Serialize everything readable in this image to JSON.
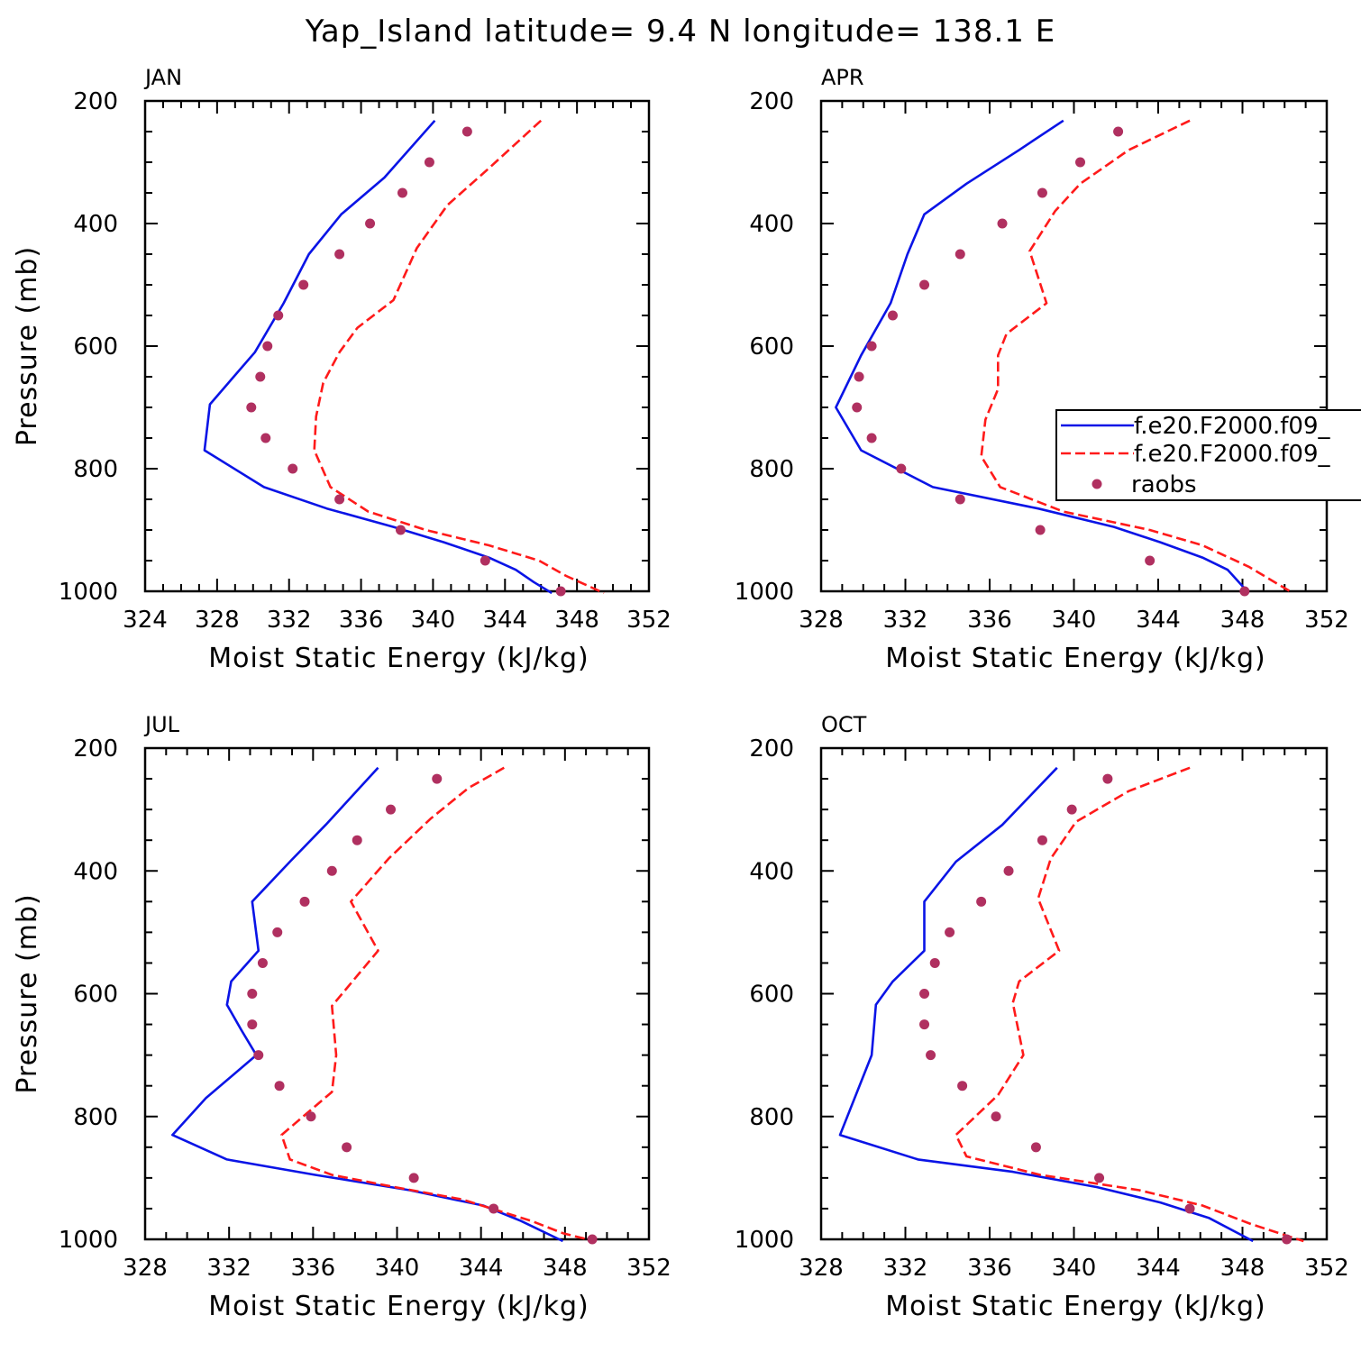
{
  "figure": {
    "title": "Yap_Island  latitude= 9.4 N longitude= 138.1 E",
    "legend": [
      "f.e20.F2000.f09_",
      "f.e20.F2000.f09_",
      "raobs"
    ]
  },
  "colors": {
    "model1": "#0a14e6",
    "model2": "#ff1a1a",
    "obs": "#b03060",
    "axis": "#000000"
  },
  "chart_data": [
    {
      "type": "line",
      "panel": "JAN",
      "xlabel": "Moist Static Energy (kJ/kg)",
      "ylabel": "Pressure (mb)",
      "xlim": [
        324,
        352
      ],
      "ylim": [
        200,
        1000
      ],
      "xticks": [
        324,
        328,
        332,
        336,
        340,
        344,
        348,
        352
      ],
      "yticks": [
        200,
        400,
        600,
        800,
        1000
      ],
      "series": [
        {
          "name": "f.e20.F2000.f09_",
          "style": "solid",
          "color": "#0a14e6",
          "x": [
            340.1,
            337.3,
            334.9,
            333.1,
            331.7,
            330.1,
            327.6,
            327.3,
            330.6,
            334.1,
            337.8,
            340.6,
            343.1,
            344.6,
            345.6,
            346.6
          ],
          "p": [
            232,
            325,
            385,
            450,
            530,
            610,
            695,
            770,
            830,
            865,
            895,
            920,
            945,
            965,
            985,
            1003
          ]
        },
        {
          "name": "f.e20.F2000.f09_",
          "style": "dashed",
          "color": "#ff1a1a",
          "x": [
            346,
            343.1,
            340.8,
            339.1,
            337.8,
            335.8,
            334.8,
            333.9,
            333.5,
            333.4,
            334.3,
            336.4,
            339.6,
            343.1,
            345.9,
            347.4,
            349.5
          ],
          "p": [
            232,
            310,
            370,
            440,
            525,
            570,
            610,
            660,
            715,
            770,
            830,
            870,
            900,
            925,
            950,
            975,
            1003
          ]
        },
        {
          "name": "raobs",
          "style": "markers",
          "color": "#b03060",
          "x": [
            341.9,
            339.8,
            338.3,
            336.5,
            334.8,
            332.8,
            331.4,
            330.8,
            330.4,
            329.9,
            330.7,
            332.2,
            334.8,
            338.2,
            342.9,
            347.1
          ],
          "p": [
            250,
            300,
            350,
            400,
            450,
            500,
            550,
            600,
            650,
            700,
            750,
            800,
            850,
            900,
            950,
            1000
          ]
        }
      ]
    },
    {
      "type": "line",
      "panel": "APR",
      "xlabel": "Moist Static Energy (kJ/kg)",
      "ylabel": "",
      "xlim": [
        328,
        352
      ],
      "ylim": [
        200,
        1000
      ],
      "xticks": [
        328,
        332,
        336,
        340,
        344,
        348,
        352
      ],
      "yticks": [
        200,
        400,
        600,
        800,
        1000
      ],
      "series": [
        {
          "name": "f.e20.F2000.f09_",
          "style": "solid",
          "color": "#0a14e6",
          "x": [
            339.5,
            337.4,
            334.9,
            332.9,
            332.1,
            331.3,
            329.9,
            328.7,
            329.9,
            333.3,
            338.3,
            341.9,
            344.1,
            346.1,
            347.3,
            348.3
          ],
          "p": [
            232,
            280,
            335,
            385,
            450,
            530,
            615,
            700,
            770,
            830,
            865,
            895,
            920,
            945,
            965,
            1003
          ]
        },
        {
          "name": "f.e20.F2000.f09_",
          "style": "dashed",
          "color": "#ff1a1a",
          "x": [
            345.5,
            342.6,
            340.3,
            339.1,
            337.9,
            338.7,
            336.8,
            336.4,
            336.4,
            335.8,
            335.6,
            336.5,
            339.5,
            343.6,
            346.1,
            348.3,
            350.4
          ],
          "p": [
            232,
            280,
            335,
            380,
            445,
            530,
            580,
            615,
            670,
            720,
            780,
            830,
            870,
            900,
            925,
            960,
            1003
          ]
        },
        {
          "name": "raobs",
          "style": "markers",
          "color": "#b03060",
          "x": [
            342.1,
            340.3,
            338.5,
            336.6,
            334.6,
            332.9,
            331.4,
            330.4,
            329.8,
            329.7,
            330.4,
            331.8,
            334.6,
            338.4,
            343.6,
            348.1
          ],
          "p": [
            250,
            300,
            350,
            400,
            450,
            500,
            550,
            600,
            650,
            700,
            750,
            800,
            850,
            900,
            950,
            1000
          ]
        }
      ]
    },
    {
      "type": "line",
      "panel": "JUL",
      "xlabel": "Moist Static Energy (kJ/kg)",
      "ylabel": "Pressure (mb)",
      "xlim": [
        328,
        352
      ],
      "ylim": [
        200,
        1000
      ],
      "xticks": [
        328,
        332,
        336,
        340,
        344,
        348,
        352
      ],
      "yticks": [
        200,
        400,
        600,
        800,
        1000
      ],
      "series": [
        {
          "name": "f.e20.F2000.f09_",
          "style": "solid",
          "color": "#0a14e6",
          "x": [
            339.1,
            336.6,
            334.9,
            333.1,
            333.4,
            332.1,
            331.9,
            332.6,
            333.3,
            330.9,
            329.3,
            331.9,
            336.1,
            340.6,
            344.1,
            345.9,
            347.9
          ],
          "p": [
            232,
            325,
            385,
            450,
            530,
            580,
            618,
            660,
            700,
            770,
            830,
            870,
            895,
            920,
            945,
            970,
            1003
          ]
        },
        {
          "name": "f.e20.F2000.f09_",
          "style": "dashed",
          "color": "#ff1a1a",
          "x": [
            345.1,
            343.4,
            341.6,
            339.6,
            337.8,
            339.1,
            336.9,
            337.1,
            336.9,
            334.5,
            334.9,
            336.9,
            339.9,
            343.1,
            346.4,
            347.9,
            349.4
          ],
          "p": [
            232,
            265,
            315,
            380,
            450,
            530,
            620,
            700,
            760,
            830,
            870,
            895,
            915,
            935,
            970,
            990,
            1003
          ]
        },
        {
          "name": "raobs",
          "style": "markers",
          "color": "#b03060",
          "x": [
            341.9,
            339.7,
            338.1,
            336.9,
            335.6,
            334.3,
            333.6,
            333.1,
            333.1,
            333.4,
            334.4,
            335.9,
            337.6,
            340.8,
            344.6,
            349.3
          ],
          "p": [
            250,
            300,
            350,
            400,
            450,
            500,
            550,
            600,
            650,
            700,
            750,
            800,
            850,
            900,
            950,
            1000
          ]
        }
      ]
    },
    {
      "type": "line",
      "panel": "OCT",
      "xlabel": "Moist Static Energy (kJ/kg)",
      "ylabel": "",
      "xlim": [
        328,
        352
      ],
      "ylim": [
        200,
        1000
      ],
      "xticks": [
        328,
        332,
        336,
        340,
        344,
        348,
        352
      ],
      "yticks": [
        200,
        400,
        600,
        800,
        1000
      ],
      "series": [
        {
          "name": "f.e20.F2000.f09_",
          "style": "solid",
          "color": "#0a14e6",
          "x": [
            339.2,
            336.6,
            334.4,
            332.9,
            332.9,
            331.4,
            330.6,
            330.4,
            328.9,
            332.6,
            337.1,
            341.1,
            344.1,
            346.4,
            348.5
          ],
          "p": [
            232,
            325,
            385,
            450,
            530,
            580,
            618,
            700,
            830,
            870,
            890,
            915,
            940,
            965,
            1003
          ]
        },
        {
          "name": "f.e20.F2000.f09_",
          "style": "dashed",
          "color": "#ff1a1a",
          "x": [
            345.5,
            342.6,
            340.1,
            338.9,
            338.3,
            339.3,
            337.4,
            337.1,
            337.6,
            336.4,
            334.4,
            334.9,
            338.4,
            343.1,
            346.1,
            348.4,
            350.9
          ],
          "p": [
            232,
            270,
            320,
            380,
            445,
            530,
            580,
            615,
            700,
            765,
            830,
            865,
            895,
            920,
            945,
            975,
            1003
          ]
        },
        {
          "name": "raobs",
          "style": "markers",
          "color": "#b03060",
          "x": [
            341.6,
            339.9,
            338.5,
            336.9,
            335.6,
            334.1,
            333.4,
            332.9,
            332.9,
            333.2,
            334.7,
            336.3,
            338.2,
            341.2,
            345.5,
            350.1
          ],
          "p": [
            250,
            300,
            350,
            400,
            450,
            500,
            550,
            600,
            650,
            700,
            750,
            800,
            850,
            900,
            950,
            1000
          ]
        }
      ]
    }
  ]
}
